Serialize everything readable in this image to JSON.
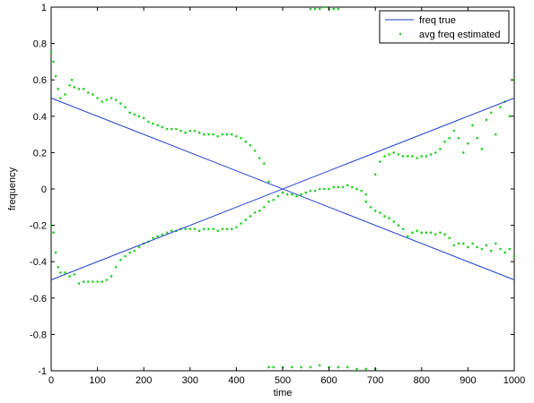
{
  "chart_data": {
    "type": "scatter",
    "xlabel": "time",
    "ylabel": "frequency",
    "xlim": [
      0,
      1000
    ],
    "ylim": [
      -1,
      1
    ],
    "xticks": [
      "0",
      "100",
      "200",
      "300",
      "400",
      "500",
      "600",
      "700",
      "800",
      "900",
      "1000"
    ],
    "yticks": [
      "-1",
      "-0.8",
      "-0.6",
      "-0.4",
      "-0.2",
      "0",
      "0.2",
      "0.4",
      "0.6",
      "0.8",
      "1"
    ],
    "legend_position": "top-right",
    "grid": false,
    "colors": {
      "line": "#1f3fc8",
      "scatter": "#1fd21f"
    },
    "lines": [
      {
        "name": "freq true",
        "x": [
          0,
          1000
        ],
        "y": [
          0.5,
          -0.5
        ]
      },
      {
        "name": "freq true",
        "x": [
          0,
          1000
        ],
        "y": [
          -0.5,
          0.5
        ]
      }
    ],
    "scatter": {
      "name": "avg freq estimated",
      "upper_track": {
        "x": [
          0,
          5,
          10,
          15,
          20,
          30,
          40,
          45,
          50,
          60,
          70,
          80,
          90,
          100,
          110,
          120,
          130,
          140,
          150,
          160,
          170,
          180,
          190,
          200,
          210,
          220,
          230,
          240,
          250,
          260,
          270,
          280,
          290,
          300,
          310,
          320,
          330,
          340,
          350,
          360,
          370,
          380,
          390,
          400,
          410,
          420,
          430,
          440,
          450,
          460,
          470
        ],
        "y": [
          0.75,
          0.7,
          0.62,
          0.55,
          0.5,
          0.52,
          0.57,
          0.6,
          0.56,
          0.55,
          0.55,
          0.53,
          0.52,
          0.5,
          0.48,
          0.49,
          0.5,
          0.49,
          0.47,
          0.45,
          0.42,
          0.41,
          0.4,
          0.39,
          0.37,
          0.36,
          0.35,
          0.34,
          0.33,
          0.33,
          0.33,
          0.32,
          0.31,
          0.32,
          0.32,
          0.31,
          0.3,
          0.3,
          0.3,
          0.29,
          0.3,
          0.3,
          0.3,
          0.29,
          0.28,
          0.26,
          0.24,
          0.21,
          0.17,
          0.14,
          0.04
        ]
      },
      "lower_track": {
        "x": [
          0,
          5,
          10,
          15,
          20,
          30,
          40,
          50,
          60,
          70,
          80,
          90,
          100,
          110,
          120,
          130,
          140,
          150,
          160,
          170,
          180,
          190,
          200,
          210,
          220,
          230,
          240,
          250,
          260,
          270,
          280,
          290,
          300,
          310,
          320,
          330,
          340,
          350,
          360,
          370,
          380,
          390,
          400,
          410,
          420,
          430,
          440,
          450,
          460,
          470,
          480,
          490,
          500
        ],
        "y": [
          -0.2,
          -0.24,
          -0.35,
          -0.43,
          -0.46,
          -0.46,
          -0.48,
          -0.47,
          -0.52,
          -0.51,
          -0.51,
          -0.51,
          -0.51,
          -0.51,
          -0.5,
          -0.48,
          -0.43,
          -0.39,
          -0.37,
          -0.35,
          -0.34,
          -0.32,
          -0.3,
          -0.29,
          -0.27,
          -0.26,
          -0.25,
          -0.24,
          -0.23,
          -0.23,
          -0.22,
          -0.22,
          -0.22,
          -0.22,
          -0.23,
          -0.22,
          -0.22,
          -0.22,
          -0.23,
          -0.22,
          -0.22,
          -0.22,
          -0.21,
          -0.19,
          -0.17,
          -0.15,
          -0.13,
          -0.12,
          -0.1,
          -0.07,
          -0.06,
          -0.04,
          -0.02
        ]
      },
      "middle_track": {
        "x": [
          500,
          510,
          520,
          530,
          540,
          550,
          560,
          570,
          580,
          590,
          600,
          610,
          620,
          630,
          640,
          650,
          660,
          670,
          680
        ],
        "y": [
          -0.02,
          -0.03,
          -0.03,
          -0.04,
          -0.03,
          -0.02,
          -0.01,
          -0.01,
          0.0,
          0.0,
          0.0,
          0.01,
          0.01,
          0.01,
          0.02,
          0.01,
          0.0,
          -0.01,
          -0.03
        ]
      },
      "lower_right_track": {
        "x": [
          680,
          690,
          700,
          710,
          720,
          730,
          740,
          750,
          760,
          770,
          780,
          790,
          800,
          810,
          820,
          830,
          840,
          850,
          860,
          870,
          880,
          890,
          900,
          910,
          920,
          930,
          940,
          950,
          960,
          970,
          980,
          990,
          1000
        ],
        "y": [
          -0.07,
          -0.1,
          -0.12,
          -0.13,
          -0.15,
          -0.16,
          -0.18,
          -0.2,
          -0.22,
          -0.26,
          -0.24,
          -0.23,
          -0.24,
          -0.24,
          -0.24,
          -0.25,
          -0.24,
          -0.25,
          -0.27,
          -0.31,
          -0.3,
          -0.3,
          -0.32,
          -0.3,
          -0.32,
          -0.33,
          -0.31,
          -0.34,
          -0.3,
          -0.33,
          -0.35,
          -0.33,
          -0.37
        ]
      },
      "upper_right_track": {
        "x": [
          700,
          710,
          720,
          730,
          740,
          750,
          760,
          770,
          780,
          790,
          800,
          810,
          820,
          830,
          840,
          850,
          860,
          870,
          880,
          890,
          900,
          910,
          920,
          930,
          940,
          950,
          960,
          970,
          980,
          990,
          1000
        ],
        "y": [
          0.08,
          0.15,
          0.18,
          0.19,
          0.2,
          0.19,
          0.18,
          0.18,
          0.18,
          0.17,
          0.18,
          0.18,
          0.19,
          0.2,
          0.22,
          0.26,
          0.28,
          0.32,
          0.28,
          0.2,
          0.25,
          0.35,
          0.28,
          0.22,
          0.38,
          0.42,
          0.3,
          0.45,
          0.48,
          0.4,
          0.6
        ]
      },
      "bottom_track": {
        "x": [
          470,
          480,
          500,
          520,
          540,
          560,
          580,
          600,
          620,
          640,
          660,
          680,
          700
        ],
        "y": [
          -0.98,
          -0.98,
          -0.98,
          -0.98,
          -0.98,
          -0.98,
          -0.97,
          -0.98,
          -0.98,
          -0.98,
          -0.99,
          -0.99,
          -0.99
        ]
      },
      "top_track": {
        "x": [
          560,
          570,
          580,
          590,
          600,
          610,
          620
        ],
        "y": [
          0.99,
          0.99,
          0.99,
          1.0,
          0.99,
          0.99,
          0.99
        ]
      }
    }
  }
}
